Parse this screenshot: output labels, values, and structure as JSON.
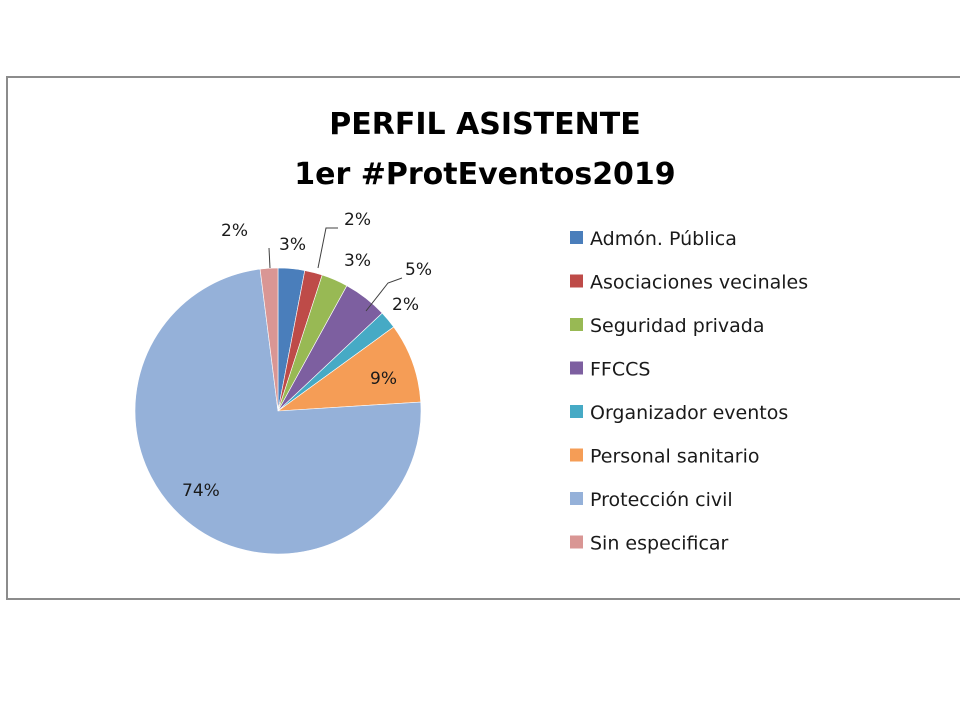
{
  "chart_data": {
    "type": "pie",
    "title": [
      "PERFIL ASISTENTE",
      "1er #ProtEventos2019"
    ],
    "legend_position": "right",
    "slices": [
      {
        "label": "Admón. Pública",
        "value": 3,
        "data_label": "3%",
        "color": "#4a7ebb"
      },
      {
        "label": "Asociaciones vecinales",
        "value": 2,
        "data_label": "2%",
        "color": "#be4b48"
      },
      {
        "label": "Seguridad privada",
        "value": 3,
        "data_label": "3%",
        "color": "#98b954"
      },
      {
        "label": "FFCCS",
        "value": 5,
        "data_label": "5%",
        "color": "#7d5fa0"
      },
      {
        "label": "Organizador eventos",
        "value": 2,
        "data_label": "2%",
        "color": "#46aac5"
      },
      {
        "label": "Personal sanitario",
        "value": 9,
        "data_label": "9%",
        "color": "#f59d56"
      },
      {
        "label": "Protección civil",
        "value": 74,
        "data_label": "74%",
        "color": "#95b1d9"
      },
      {
        "label": "Sin especificar",
        "value": 2,
        "data_label": "2%",
        "color": "#d99694"
      }
    ]
  }
}
